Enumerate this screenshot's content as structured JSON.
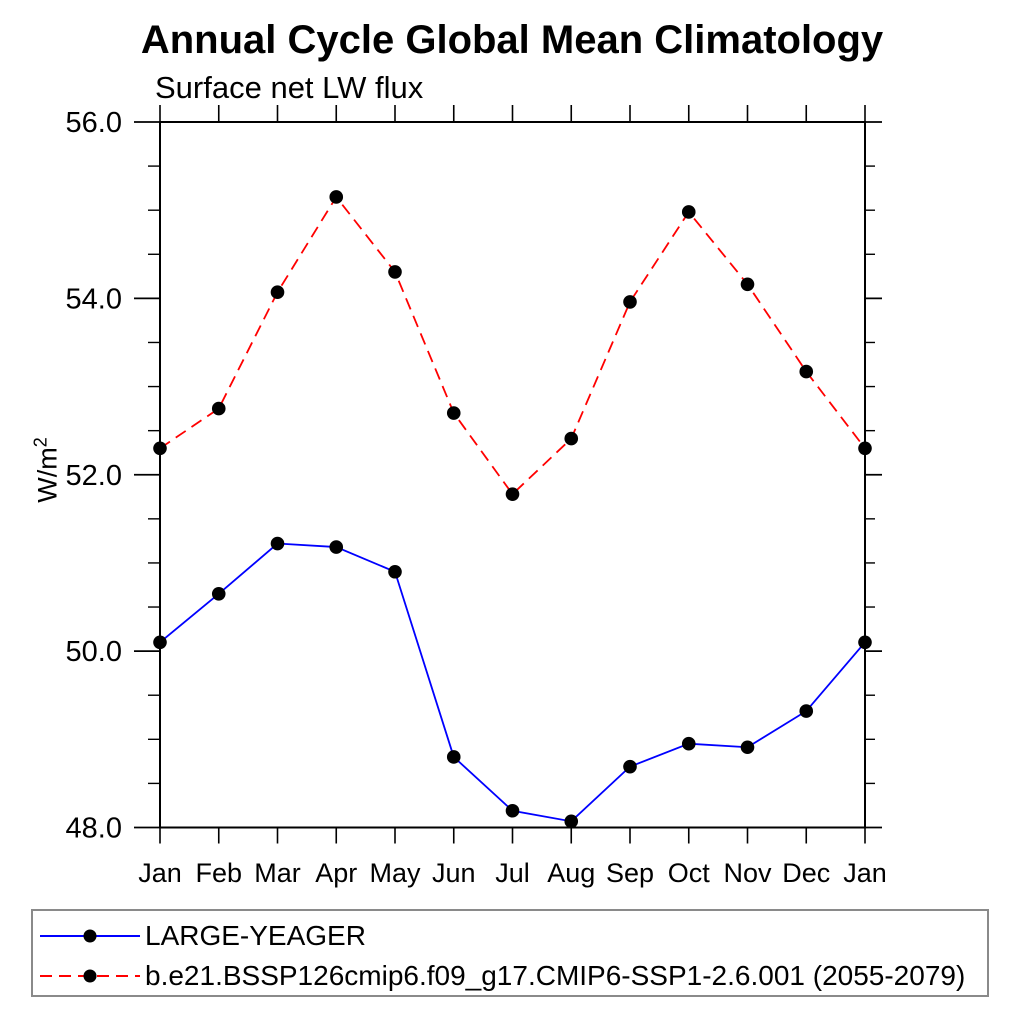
{
  "chart_data": {
    "type": "line",
    "title": "Annual Cycle Global Mean Climatology",
    "subtitle": "Surface net LW flux",
    "ylabel": {
      "base": "W/m",
      "exponent": "2"
    },
    "categories": [
      "Jan",
      "Feb",
      "Mar",
      "Apr",
      "May",
      "Jun",
      "Jul",
      "Aug",
      "Sep",
      "Oct",
      "Nov",
      "Dec",
      "Jan"
    ],
    "ylim": [
      48.0,
      56.0
    ],
    "yticks": {
      "values": [
        48,
        50,
        52,
        54,
        56
      ],
      "labels": [
        "48.0",
        "50.0",
        "52.0",
        "54.0",
        "56.0"
      ],
      "minor_step": 0.5
    },
    "grid": false,
    "legend_position": "bottom-box",
    "axis_color": "#000000",
    "legend_border_color": "#8a8a8a",
    "marker_color": "#000000",
    "series": [
      {
        "name": "LARGE-YEAGER",
        "color": "#0000ff",
        "line_style": "solid",
        "marker": "filled-circle",
        "values": [
          50.1,
          50.65,
          51.22,
          51.18,
          50.9,
          48.8,
          48.19,
          48.07,
          48.69,
          48.95,
          48.91,
          49.32,
          50.1
        ]
      },
      {
        "name": "b.e21.BSSP126cmip6.f09_g17.CMIP6-SSP1-2.6.001 (2055-2079)",
        "color": "#ff0000",
        "line_style": "dashed",
        "marker": "filled-circle",
        "values": [
          52.3,
          52.75,
          54.07,
          55.15,
          54.3,
          52.7,
          51.78,
          52.41,
          53.96,
          54.98,
          54.16,
          53.17,
          52.3
        ]
      }
    ]
  }
}
